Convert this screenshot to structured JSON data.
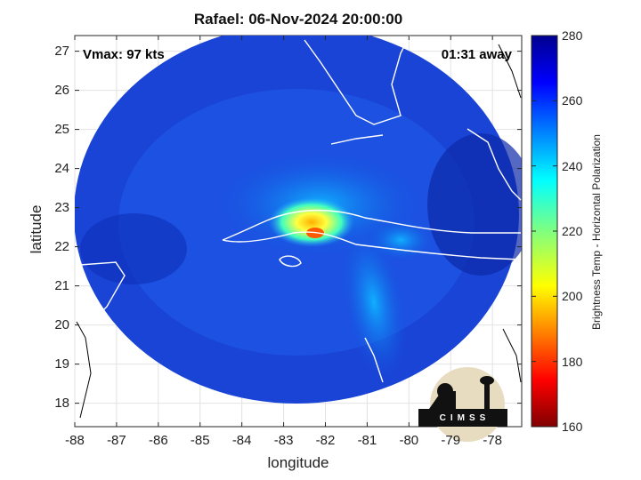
{
  "title": "Rafael: 06-Nov-2024 20:00:00",
  "annotations": {
    "vmax": "Vmax: 97 kts",
    "time_away": "01:31 away"
  },
  "axes": {
    "xlabel": "longitude",
    "ylabel": "latitude",
    "x_ticks": [
      "-88",
      "-87",
      "-86",
      "-85",
      "-84",
      "-83",
      "-82",
      "-81",
      "-80",
      "-79",
      "-78"
    ],
    "y_ticks": [
      "27",
      "26",
      "25",
      "24",
      "23",
      "22",
      "21",
      "20",
      "19",
      "18"
    ],
    "x_range": [
      -88,
      -77.3
    ],
    "y_range": [
      17.4,
      27.4
    ]
  },
  "colorbar": {
    "label": "Brightness Temp - Horizontal Polarization",
    "ticks": [
      "280",
      "260",
      "240",
      "220",
      "200",
      "180",
      "160"
    ],
    "range": [
      160,
      280
    ],
    "colormap": "jet"
  },
  "logo": {
    "text": "CIMSS"
  },
  "storm_center": {
    "lon": -82.3,
    "lat": 22.1
  },
  "swath_center": {
    "lon": -82.6,
    "lat": 22.4
  },
  "colors": {
    "background": "#ffffff",
    "coastline": "#ffffff",
    "land": "#000000"
  }
}
